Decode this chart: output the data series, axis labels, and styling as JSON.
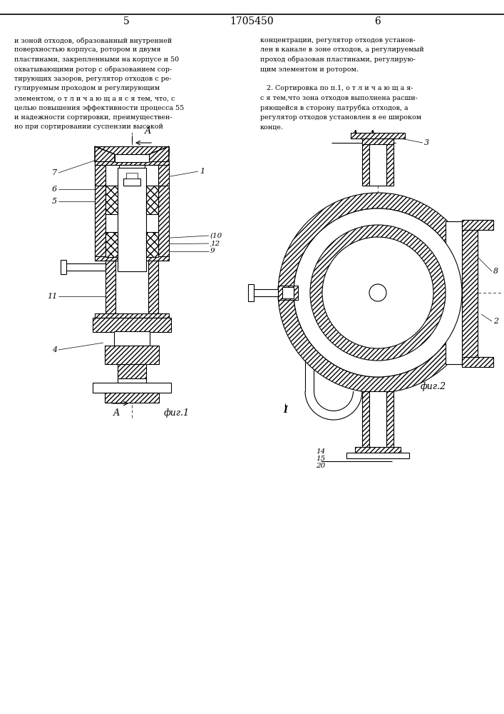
{
  "page_num_left": "5",
  "page_num_center": "1705450",
  "page_num_right": "6",
  "text_left": [
    "и зоной отходов, образованный внутренней",
    "поверхностью корпуса, ротором и двумя",
    "пластинами, закрепленными на корпусе и 50",
    "охватывающими ротор с образованием сор-",
    "тирующих зазоров, регулятор отходов с ре-",
    "гулируемым проходом и регулирующим",
    "элементом, о т л и ч а ю щ а я с я тем, что, с",
    "целью повышения эффективности процесса 55",
    "и надежности сортировки, преимуществен-",
    "но при сортировании суспензии высокой"
  ],
  "text_right": [
    "концентрации, регулятор отходов установ-",
    "лен в канале в зоне отходов, а регулируемый",
    "проход образован пластинами, регулирую-",
    "щим элементом и ротором.",
    "",
    "   2. Сортировка по п.1, о т л и ч а ю щ а я-",
    "с я тем,что зона отходов выполнена расши-",
    "ряющейся в сторону патрубка отходов, а",
    "регулятор отходов установлен в ее широком",
    "конце."
  ],
  "fig1_caption": "фиг.1",
  "fig2_caption": "фиг.2",
  "section_label": "А – А",
  "bg_color": "#ffffff"
}
